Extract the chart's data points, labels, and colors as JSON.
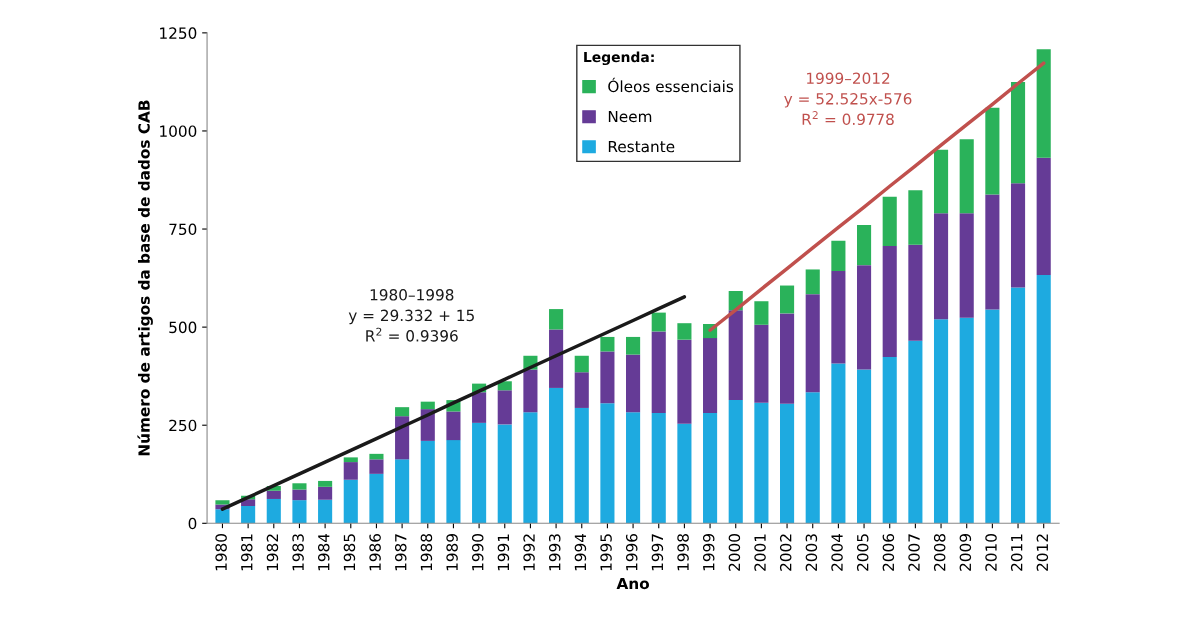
{
  "chart_data": {
    "type": "bar",
    "stacked": true,
    "xlabel": "Ano",
    "ylabel": "Número de artigos da base de dados CAB",
    "legend_title": "Legenda:",
    "legend": "top",
    "ylim": [
      0,
      1250
    ],
    "yticks": [
      0,
      250,
      500,
      750,
      1000,
      1250
    ],
    "grid": false,
    "categories": [
      "1980",
      "1981",
      "1982",
      "1983",
      "1984",
      "1985",
      "1986",
      "1987",
      "1988",
      "1989",
      "1990",
      "1991",
      "1992",
      "1993",
      "1994",
      "1995",
      "1996",
      "1997",
      "1998",
      "1999",
      "2000",
      "2001",
      "2002",
      "2003",
      "2004",
      "2005",
      "2006",
      "2007",
      "2008",
      "2009",
      "2010",
      "2011",
      "2012"
    ],
    "series": [
      {
        "name": "Restante",
        "color": "#1eaae0",
        "values": [
          36,
          44,
          62,
          59,
          60,
          111,
          126,
          163,
          210,
          212,
          256,
          252,
          283,
          345,
          294,
          306,
          283,
          281,
          254,
          281,
          314,
          307,
          305,
          334,
          407,
          392,
          424,
          465,
          520,
          524,
          545,
          601,
          633
        ]
      },
      {
        "name": "Neem",
        "color": "#653b96",
        "values": [
          12,
          17,
          21,
          27,
          33,
          45,
          37,
          110,
          81,
          73,
          78,
          87,
          109,
          149,
          91,
          132,
          147,
          208,
          214,
          191,
          229,
          199,
          230,
          250,
          236,
          266,
          283,
          245,
          270,
          266,
          293,
          266,
          299
        ]
      },
      {
        "name": "Óleos essenciais",
        "color": "#2ab25a",
        "values": [
          11,
          9,
          12,
          16,
          15,
          12,
          14,
          23,
          19,
          29,
          22,
          23,
          35,
          52,
          42,
          37,
          45,
          48,
          42,
          36,
          49,
          60,
          71,
          63,
          77,
          102,
          125,
          139,
          162,
          189,
          221,
          258,
          276
        ]
      },
      {
        "type": "line",
        "color": "#1a1a1a",
        "values": [
          36,
          66,
          96,
          126,
          156,
          186,
          216,
          246,
          276,
          307,
          337,
          367,
          397,
          427,
          457,
          487,
          517,
          547,
          577,
          null,
          null,
          null,
          null,
          null,
          null,
          null,
          null,
          null,
          null,
          null,
          null,
          null,
          null
        ]
      },
      {
        "type": "line",
        "color": "#c0504d",
        "values": [
          null,
          null,
          null,
          null,
          null,
          null,
          null,
          null,
          null,
          null,
          null,
          null,
          null,
          null,
          null,
          null,
          null,
          null,
          null,
          492,
          544,
          597,
          649,
          702,
          754,
          806,
          859,
          911,
          964,
          1016,
          1068,
          1121,
          1173
        ]
      }
    ],
    "annotations": [
      "1980–1998\ny = 29.332 + 15\nR$^{2}$ = 0.9396",
      "1999–2012\ny = 52.525x-576\nR$^{2}$ = 0.9778"
    ]
  }
}
